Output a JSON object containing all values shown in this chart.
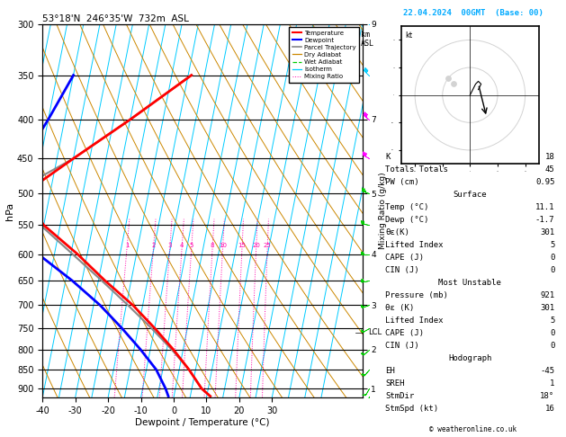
{
  "title_left": "53°18'N  246°35'W  732m  ASL",
  "title_right": "22.04.2024  00GMT  (Base: 00)",
  "xlabel": "Dewpoint / Temperature (°C)",
  "ylabel_left": "hPa",
  "pressure_ticks": [
    300,
    350,
    400,
    450,
    500,
    550,
    600,
    650,
    700,
    750,
    800,
    850,
    900
  ],
  "temp_ticks": [
    -40,
    -30,
    -20,
    -10,
    0,
    10,
    20,
    30
  ],
  "pmin": 300,
  "pmax": 925,
  "tmin": -40,
  "tmax": 35,
  "skew_factor": 20.0,
  "lcl_pressure": 760,
  "isotherm_color": "#00CCFF",
  "dry_adiabat_color": "#CC8800",
  "wet_adiabat_color": "#00CC00",
  "mixing_ratio_color": "#FF00AA",
  "temperature_color": "#FF0000",
  "dewpoint_color": "#0000FF",
  "parcel_color": "#888888",
  "km_pressures": [
    300,
    400,
    500,
    600,
    700,
    800,
    900
  ],
  "km_values": [
    9,
    7,
    5,
    4,
    3,
    2,
    1
  ],
  "temp_profile_t": [
    11.1,
    8.0,
    3.0,
    -3.0,
    -10.0,
    -18.0,
    -28.0,
    -38.0,
    -50.0,
    -58.0,
    -45.0,
    -30.0,
    -14.0
  ],
  "temp_profile_p": [
    921,
    900,
    850,
    800,
    750,
    700,
    650,
    600,
    550,
    500,
    450,
    400,
    350
  ],
  "dewp_profile_t": [
    -1.7,
    -3.0,
    -7.0,
    -13.0,
    -20.0,
    -28.0,
    -38.0,
    -50.0,
    -60.0,
    -65.0,
    -60.0,
    -55.0,
    -50.0
  ],
  "dewp_profile_p": [
    921,
    900,
    850,
    800,
    750,
    700,
    650,
    600,
    550,
    500,
    450,
    400,
    350
  ],
  "parcel_t": [
    11.1,
    8.0,
    3.0,
    -3.5,
    -11.0,
    -19.5,
    -29.0,
    -39.5,
    -51.0,
    -62.0,
    -45.0,
    -30.0,
    -14.0
  ],
  "parcel_p": [
    921,
    900,
    850,
    800,
    750,
    700,
    650,
    600,
    550,
    500,
    450,
    400,
    350
  ],
  "mixing_ratio_vals": [
    1,
    2,
    3,
    4,
    5,
    8,
    10,
    15,
    20,
    25
  ],
  "stats": {
    "K": 18,
    "Totals_Totals": 45,
    "PW_cm": 0.95,
    "Surface_Temp": 11.1,
    "Surface_Dewp": -1.7,
    "Surface_Theta_e": 301,
    "Surface_Lifted_Index": 5,
    "Surface_CAPE": 0,
    "Surface_CIN": 0,
    "MU_Pressure": 921,
    "MU_Theta_e": 301,
    "MU_Lifted_Index": 5,
    "MU_CAPE": 0,
    "MU_CIN": 0,
    "Hodo_EH": -45,
    "Hodo_SREH": 1,
    "Hodo_StmDir": 18,
    "Hodo_StmSpd": 16
  },
  "wind_pressures": [
    921,
    900,
    850,
    800,
    750,
    700,
    650,
    600,
    550,
    500,
    450,
    400,
    350,
    300
  ],
  "wind_speeds": [
    16,
    15,
    20,
    18,
    22,
    25,
    28,
    30,
    32,
    35,
    38,
    40,
    42,
    45
  ],
  "wind_dirs": [
    200,
    210,
    220,
    230,
    240,
    250,
    260,
    270,
    280,
    290,
    300,
    310,
    315,
    320
  ],
  "wind_colors": [
    "#00CC00",
    "#00CC00",
    "#00CC00",
    "#00CC00",
    "#00CC00",
    "#00CC00",
    "#00CC00",
    "#00CC00",
    "#00CC00",
    "#00CC00",
    "#FF00FF",
    "#FF00FF",
    "#00CCFF",
    "#00CCFF"
  ]
}
